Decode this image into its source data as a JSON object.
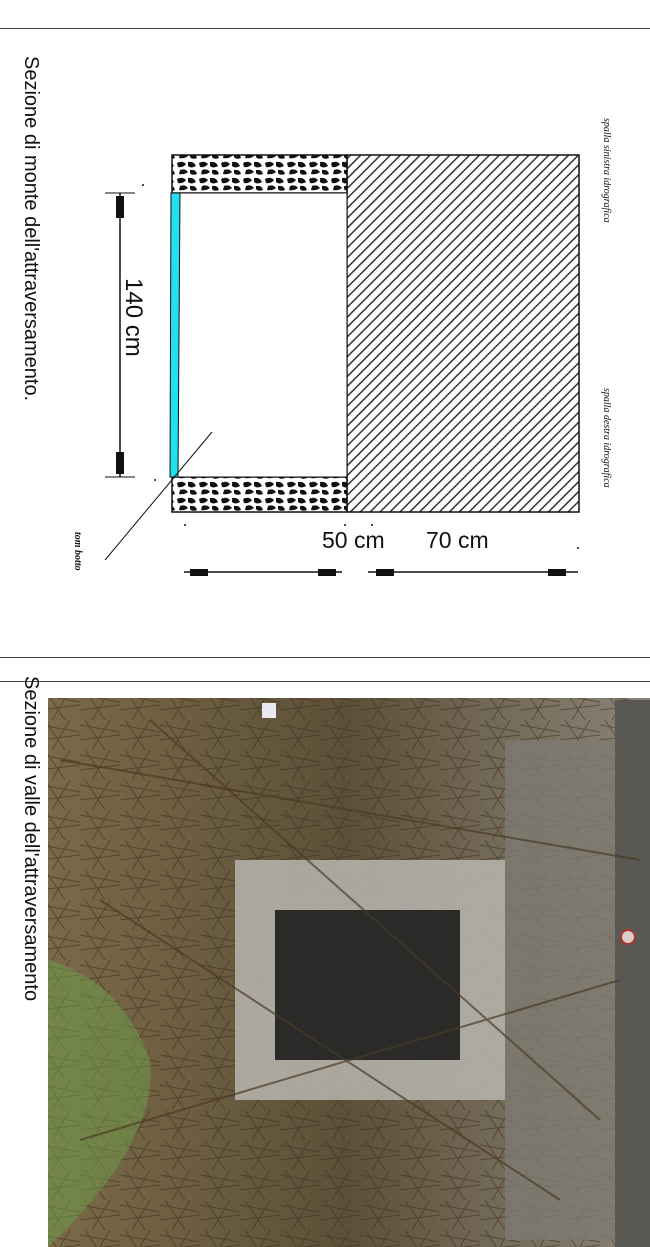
{
  "top_panel": {
    "caption": "Sezione di monte dell'attraversamento.",
    "label_left_bank": "spalla sinistra idrografica",
    "label_right_bank": "spalla destra idrografica",
    "dim_width": "140 cm",
    "dim_depth_lower": "50 cm",
    "dim_depth_upper": "70 cm",
    "label_torrent": "tom botto",
    "colors": {
      "water": "#22e0f0",
      "line": "#111111",
      "hatch": "#333333"
    }
  },
  "bottom_panel": {
    "caption": "Sezione di valle dell'attraversamento",
    "photo_icon": "culvert-photo",
    "colors": {
      "vegetation": "#6b5a3c",
      "concrete": "#b8b6b0",
      "water": "#2a2a28",
      "grass": "#6f9a4a"
    }
  }
}
